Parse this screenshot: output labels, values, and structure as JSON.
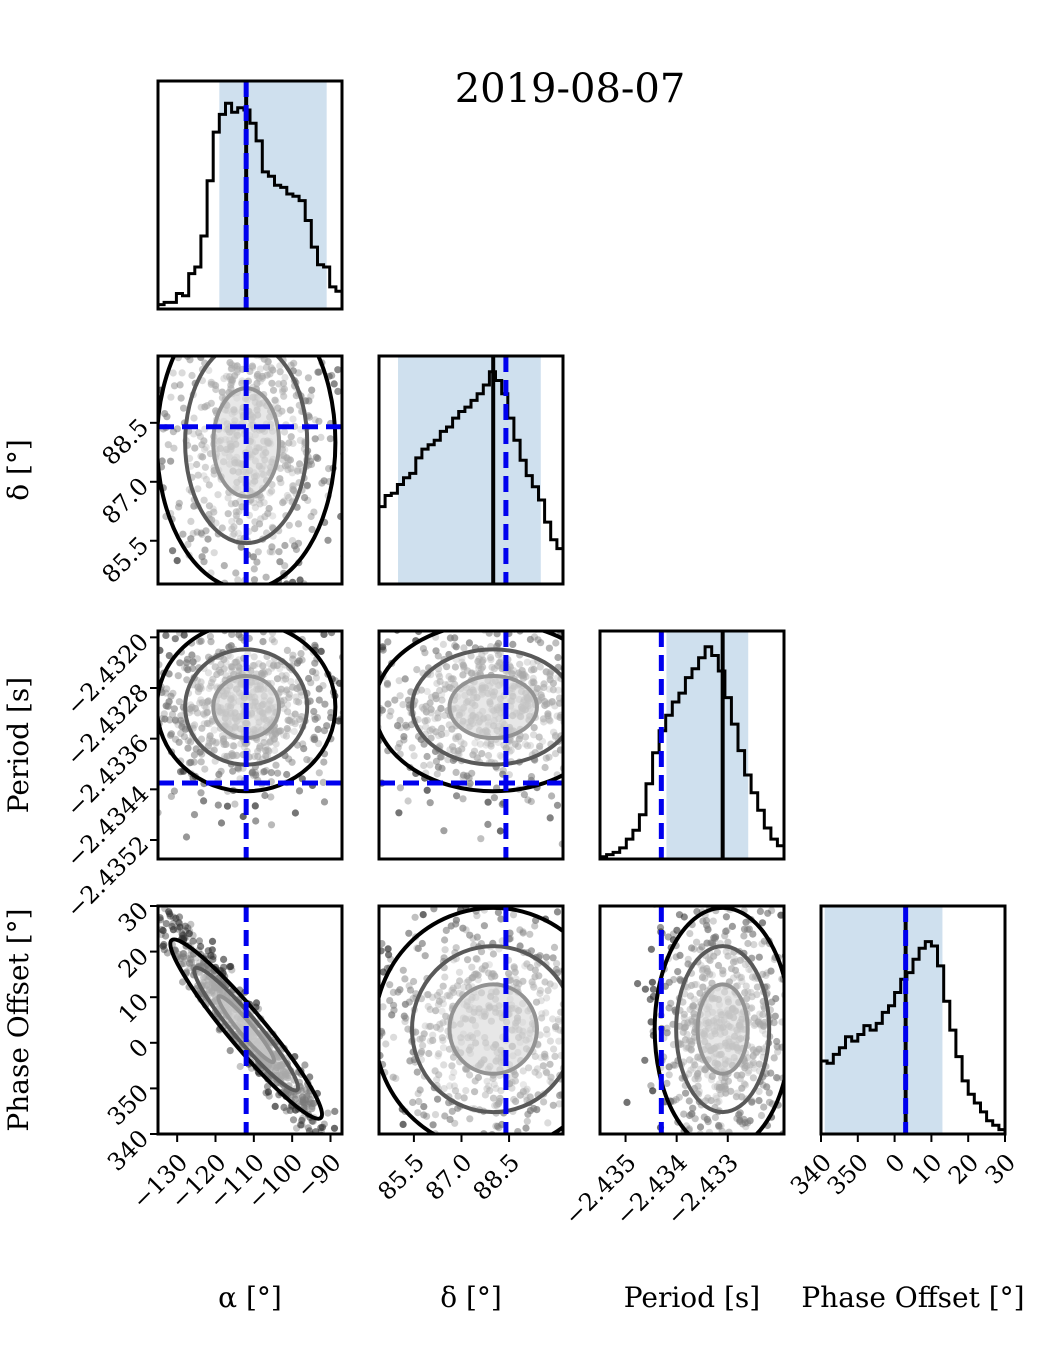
{
  "figure": {
    "title": "2019-08-07",
    "param_labels": [
      "α [°]",
      "δ [°]",
      "Period [s]",
      "Phase Offset [°]"
    ]
  },
  "colors": {
    "hist": "#000000",
    "ci_band": "#cfe0ee",
    "truth": "#0000ee",
    "median": "#000000",
    "points": "#333333"
  },
  "chart_data": {
    "type": "corner",
    "title": "2019-08-07",
    "parameters": [
      {
        "name": "α [°]",
        "range": [
          -135,
          -87
        ],
        "ticks": [
          -130,
          -120,
          -110,
          -100,
          -90
        ],
        "tick_labels": [
          "−130",
          "−120",
          "−110",
          "−100",
          "−90"
        ],
        "credible_interval": [
          -119,
          -91
        ],
        "median": -112,
        "truth": -112,
        "hist": {
          "counts": [
            0.02,
            0.03,
            0.03,
            0.07,
            0.06,
            0.16,
            0.19,
            0.33,
            0.58,
            0.8,
            0.88,
            0.93,
            0.89,
            0.91,
            0.9,
            0.84,
            0.76,
            0.62,
            0.6,
            0.56,
            0.55,
            0.52,
            0.51,
            0.49,
            0.4,
            0.28,
            0.2,
            0.19,
            0.1,
            0.08
          ]
        }
      },
      {
        "name": "δ [°]",
        "range": [
          84.4,
          90.2
        ],
        "ticks": [
          85.5,
          87.0,
          88.5
        ],
        "tick_labels": [
          "85.5",
          "87.0",
          "88.5"
        ],
        "credible_interval": [
          85.0,
          89.5
        ],
        "median": 88.0,
        "truth": 88.4,
        "hist": {
          "counts": [
            0.35,
            0.4,
            0.41,
            0.45,
            0.48,
            0.5,
            0.57,
            0.61,
            0.63,
            0.65,
            0.69,
            0.71,
            0.75,
            0.78,
            0.8,
            0.83,
            0.86,
            0.9,
            0.96,
            0.92,
            0.86,
            0.75,
            0.65,
            0.56,
            0.49,
            0.44,
            0.38,
            0.28,
            0.2,
            0.16
          ]
        }
      },
      {
        "name": "Period [s]",
        "range": [
          -2.4355,
          -2.4319
        ],
        "ticks": [
          -2.4352,
          -2.4344,
          -2.4336,
          -2.4328,
          -2.432
        ],
        "tick_labels": [
          "−2.4352",
          "−2.4344",
          "−2.4336",
          "−2.4328",
          "−2.4320"
        ],
        "diag_ticks": [
          -2.435,
          -2.434,
          -2.433
        ],
        "diag_tick_labels": [
          "−2.435",
          "−2.434",
          "−2.433"
        ],
        "credible_interval": [
          -2.4342,
          -2.4326
        ],
        "median": -2.4331,
        "truth": -2.4343,
        "hist": {
          "counts": [
            0.01,
            0.02,
            0.03,
            0.05,
            0.09,
            0.13,
            0.2,
            0.34,
            0.48,
            0.58,
            0.65,
            0.71,
            0.75,
            0.82,
            0.86,
            0.91,
            0.96,
            0.92,
            0.85,
            0.73,
            0.61,
            0.49,
            0.38,
            0.3,
            0.22,
            0.14,
            0.09,
            0.06
          ]
        }
      },
      {
        "name": "Phase Offset [°]",
        "range": [
          340,
          390
        ],
        "ticks": [
          340,
          350,
          360,
          370,
          380,
          390
        ],
        "tick_labels": [
          "340",
          "350",
          "0",
          "10",
          "20",
          "30"
        ],
        "credible_interval": [
          341,
          373
        ],
        "median": 363,
        "truth": 363,
        "hist": {
          "counts": [
            0.33,
            0.32,
            0.36,
            0.39,
            0.44,
            0.42,
            0.45,
            0.49,
            0.47,
            0.5,
            0.55,
            0.58,
            0.64,
            0.7,
            0.73,
            0.79,
            0.84,
            0.87,
            0.85,
            0.76,
            0.6,
            0.47,
            0.35,
            0.24,
            0.18,
            0.14,
            0.1,
            0.06,
            0.04,
            0.02
          ]
        }
      }
    ]
  }
}
